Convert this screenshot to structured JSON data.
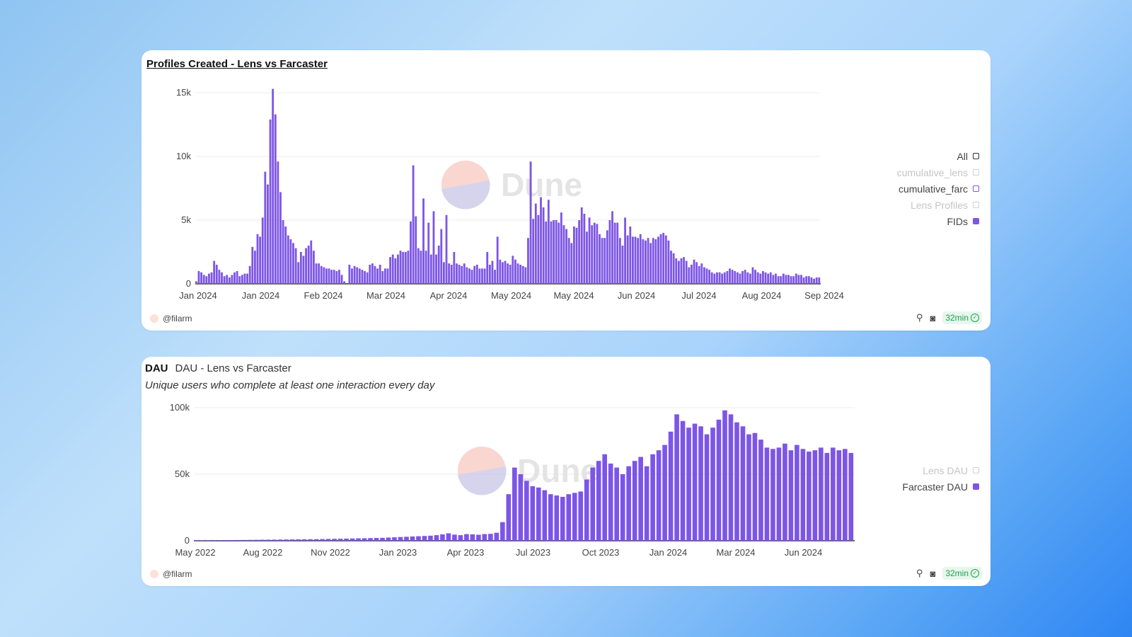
{
  "colors": {
    "bar": "#7d55e6",
    "grid": "#ececec",
    "axis_text": "#444444",
    "logo_a": "#f9c9c1",
    "logo_b": "#c9c6e6"
  },
  "card1": {
    "title": "Profiles Created - Lens vs Farcaster",
    "author": "@filarm",
    "freshness": "32min",
    "watermark": "Dune",
    "icons": [
      "wand-icon",
      "camera-icon",
      "check-icon"
    ],
    "legend": [
      {
        "label": "All",
        "state": "outline-dark"
      },
      {
        "label": "cumulative_lens",
        "state": "off"
      },
      {
        "label": "cumulative_farc",
        "state": "outline-purple"
      },
      {
        "label": "Lens Profiles",
        "state": "off"
      },
      {
        "label": "FIDs",
        "state": "filled"
      }
    ]
  },
  "card2": {
    "tag": "DAU",
    "title": "DAU - Lens vs Farcaster",
    "subtitle": "Unique users who complete at least one interaction every day",
    "author": "@filarm",
    "freshness": "32min",
    "watermark": "Dune",
    "icons": [
      "wand-icon",
      "camera-icon",
      "check-icon"
    ],
    "legend": [
      {
        "label": "Lens DAU",
        "state": "off"
      },
      {
        "label": "Farcaster DAU",
        "state": "filled"
      }
    ]
  },
  "chart_data": [
    {
      "type": "bar",
      "title": "Profiles Created - Lens vs Farcaster",
      "series_name": "FIDs",
      "ylim": [
        0,
        15000
      ],
      "yticks": [
        0,
        5000,
        10000,
        15000
      ],
      "ytick_labels": [
        "0",
        "5k",
        "10k",
        "15k"
      ],
      "xtick_labels": [
        "Jan 2024",
        "Jan 2024",
        "Feb 2024",
        "Mar 2024",
        "Apr 2024",
        "May 2024",
        "May 2024",
        "Jun 2024",
        "Jul 2024",
        "Aug 2024",
        "Sep 2024"
      ],
      "grid": true,
      "legend_position": "right",
      "values": [
        200,
        1000,
        900,
        700,
        600,
        800,
        900,
        1800,
        1500,
        1100,
        900,
        600,
        700,
        500,
        700,
        900,
        1000,
        600,
        700,
        800,
        800,
        1400,
        2900,
        2600,
        3900,
        3700,
        5200,
        8800,
        7800,
        12900,
        15300,
        13300,
        9600,
        7200,
        5000,
        4500,
        3800,
        3500,
        3200,
        2800,
        1700,
        2500,
        2200,
        2800,
        3000,
        3400,
        2600,
        1600,
        1600,
        1400,
        1300,
        1200,
        1200,
        1100,
        1100,
        1000,
        1100,
        700,
        200,
        0,
        1500,
        1200,
        1400,
        1300,
        1200,
        1100,
        1000,
        900,
        1500,
        1600,
        1400,
        1200,
        1500,
        1000,
        1200,
        1200,
        2100,
        2300,
        2000,
        2300,
        2600,
        2500,
        2500,
        2600,
        4900,
        9300,
        5300,
        2800,
        2600,
        6700,
        2600,
        4800,
        2300,
        5700,
        2300,
        3000,
        4300,
        1700,
        5400,
        1600,
        1500,
        2500,
        1600,
        1500,
        1400,
        1600,
        1300,
        1200,
        1100,
        1400,
        1500,
        1200,
        1200,
        1200,
        2500,
        1500,
        1800,
        1100,
        3700,
        1900,
        1700,
        1800,
        1600,
        1500,
        2200,
        1900,
        1600,
        1500,
        1400,
        1300,
        3600,
        9600,
        5100,
        6300,
        5400,
        6800,
        6000,
        4900,
        6600,
        4900,
        5000,
        5000,
        4800,
        5600,
        4600,
        4300,
        3600,
        3200,
        4500,
        4400,
        5000,
        6000,
        5500,
        4100,
        5200,
        4600,
        4800,
        4700,
        3900,
        3600,
        3600,
        4200,
        5000,
        5700,
        4800,
        4800,
        3600,
        3000,
        5200,
        3800,
        4500,
        3700,
        3700,
        3600,
        3900,
        3500,
        3400,
        3600,
        3200,
        3600,
        3500,
        3700,
        3900,
        4000,
        3800,
        3400,
        2600,
        2400,
        2000,
        1800,
        2000,
        2100,
        1800,
        1300,
        1500,
        1900,
        1700,
        1400,
        1600,
        1300,
        1200,
        1100,
        900,
        800,
        900,
        900,
        800,
        900,
        1000,
        1200,
        1100,
        1000,
        900,
        800,
        1000,
        1100,
        900,
        800,
        1300,
        1100,
        900,
        800,
        1000,
        900,
        800,
        900,
        700,
        800,
        600,
        600,
        800,
        700,
        700,
        600,
        600,
        800,
        700,
        700,
        500,
        600,
        600,
        500,
        400,
        500,
        500
      ]
    },
    {
      "type": "bar",
      "title": "DAU - Lens vs Farcaster",
      "series_name": "Farcaster DAU",
      "ylim": [
        0,
        100000
      ],
      "yticks": [
        0,
        50000,
        100000
      ],
      "ytick_labels": [
        "0",
        "50k",
        "100k"
      ],
      "xtick_labels": [
        "May 2022",
        "Aug 2022",
        "Nov 2022",
        "Jan 2023",
        "Apr 2023",
        "Jul 2023",
        "Oct 2023",
        "Jan 2024",
        "Mar 2024",
        "Jun 2024"
      ],
      "grid": true,
      "legend_position": "right",
      "values": [
        300,
        300,
        350,
        400,
        400,
        450,
        500,
        550,
        600,
        650,
        700,
        750,
        800,
        850,
        900,
        950,
        1000,
        1050,
        1100,
        1150,
        1200,
        1250,
        1350,
        1450,
        1500,
        1600,
        1700,
        1800,
        1900,
        2000,
        2100,
        2200,
        2400,
        2600,
        2800,
        3000,
        3200,
        3400,
        3600,
        3800,
        4200,
        4800,
        5600,
        4600,
        4200,
        5000,
        4800,
        4500,
        5000,
        5200,
        6000,
        14000,
        35000,
        55000,
        50000,
        45000,
        41000,
        40000,
        38000,
        35000,
        34000,
        33000,
        35000,
        36000,
        37000,
        46000,
        55000,
        60000,
        65000,
        58000,
        55000,
        50000,
        56000,
        60000,
        63000,
        56000,
        65000,
        68000,
        72000,
        82000,
        95000,
        90000,
        85000,
        88000,
        86000,
        80000,
        85000,
        91000,
        98000,
        95000,
        89000,
        86000,
        80000,
        81000,
        76000,
        70000,
        69000,
        70000,
        73000,
        68000,
        72000,
        69000,
        67000,
        68000,
        70000,
        66000,
        70000,
        68000,
        69000,
        66000
      ]
    }
  ]
}
